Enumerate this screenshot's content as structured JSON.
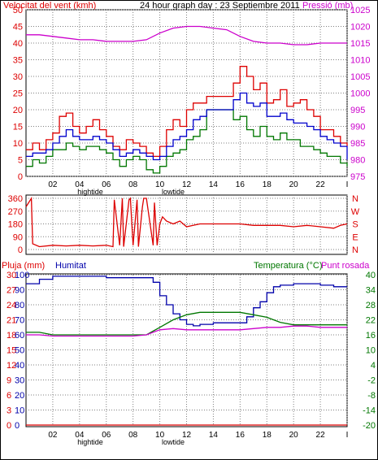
{
  "header": {
    "wind_label": "Velocitat del vent (kmh)",
    "graph_title": "24 hour graph day : 23 Septiembre 2011",
    "pressure_label": "Pressió (mb)"
  },
  "direction_letters": [
    "N",
    "W",
    "S",
    "E",
    "N"
  ],
  "lower_labels": {
    "rain": "Pluja (mm)",
    "humidity": "Humitat",
    "temperature": "Temperatura (°C)",
    "dew": "Punt rosada"
  },
  "tide_labels": [
    {
      "text": "hightide",
      "x": 4.8
    },
    {
      "text": "lowtide",
      "x": 11.0
    }
  ],
  "colors": {
    "frame": "#000000",
    "gust": "#dd0000",
    "wind_avg": "#0000cc",
    "wind_low": "#007700",
    "pressure": "#cc00cc",
    "temperature": "#007700",
    "humidity": "#0000aa",
    "rain": "#dd0000",
    "dew": "#cc00cc",
    "direction": "#dd0000",
    "grid": "#808080"
  },
  "chart_data": [
    {
      "type": "line",
      "title": "24 hour graph day : 23 Septiembre 2011",
      "xlabel": "",
      "x_ticks": [
        "02",
        "04",
        "06",
        "08",
        "10",
        "12",
        "14",
        "16",
        "18",
        "20",
        "22",
        "I"
      ],
      "x_range": [
        0,
        24
      ],
      "y_left": {
        "label": "Velocitat del vent (kmh)",
        "range": [
          0,
          50
        ],
        "ticks": [
          0,
          5,
          10,
          15,
          20,
          25,
          30,
          35,
          40,
          45,
          50
        ]
      },
      "y_right": {
        "label": "Pressió (mb)",
        "range": [
          975,
          1025
        ],
        "ticks": [
          975,
          980,
          985,
          990,
          995,
          1000,
          1005,
          1010,
          1015,
          1020,
          1025
        ]
      },
      "grid": true,
      "series": [
        {
          "name": "gust",
          "axis": "left",
          "x": [
            0,
            0.5,
            1,
            1.5,
            2,
            2.5,
            3,
            3.5,
            4,
            4.5,
            5,
            5.5,
            6,
            6.5,
            7,
            7.5,
            8,
            8.5,
            9,
            9.5,
            10,
            10.5,
            11,
            11.5,
            12,
            12.5,
            13,
            13.5,
            14,
            14.5,
            15,
            15.5,
            16,
            16.5,
            17,
            17.5,
            18,
            18.5,
            19,
            19.5,
            20,
            20.5,
            21,
            21.5,
            22,
            22.5,
            23,
            23.5,
            24
          ],
          "y": [
            8,
            10,
            8,
            11,
            13,
            18,
            19,
            15,
            13,
            15,
            17,
            14,
            12,
            9,
            8,
            11,
            10,
            9,
            7,
            6,
            9,
            14,
            17,
            15,
            20,
            22,
            22,
            24,
            24,
            24,
            24,
            28,
            33,
            30,
            26,
            28,
            22,
            23,
            26,
            21,
            22,
            23,
            20,
            18,
            14,
            14,
            12,
            10,
            9
          ]
        },
        {
          "name": "average",
          "axis": "left",
          "x": [
            0,
            0.5,
            1,
            1.5,
            2,
            2.5,
            3,
            3.5,
            4,
            4.5,
            5,
            5.5,
            6,
            6.5,
            7,
            7.5,
            8,
            8.5,
            9,
            9.5,
            10,
            10.5,
            11,
            11.5,
            12,
            12.5,
            13,
            13.5,
            14,
            14.5,
            15,
            15.5,
            16,
            16.5,
            17,
            17.5,
            18,
            18.5,
            19,
            19.5,
            20,
            20.5,
            21,
            21.5,
            22,
            22.5,
            23,
            23.5,
            24
          ],
          "y": [
            6,
            7,
            7,
            8,
            10,
            12,
            14,
            12,
            11,
            11,
            12,
            11,
            10,
            8,
            6,
            7,
            8,
            7,
            6,
            5,
            6,
            9,
            11,
            12,
            14,
            17,
            18,
            20,
            20,
            20,
            20,
            23,
            25,
            22,
            21,
            22,
            18,
            18,
            19,
            17,
            16,
            16,
            15,
            14,
            12,
            11,
            10,
            9,
            5
          ]
        },
        {
          "name": "low",
          "axis": "left",
          "x": [
            0,
            0.5,
            1,
            1.5,
            2,
            2.5,
            3,
            3.5,
            4,
            4.5,
            5,
            5.5,
            6,
            6.5,
            7,
            7.5,
            8,
            8.5,
            9,
            9.5,
            10,
            10.5,
            11,
            11.5,
            12,
            12.5,
            13,
            13.5,
            14,
            14.5,
            15,
            15.5,
            16,
            16.5,
            17,
            17.5,
            18,
            18.5,
            19,
            19.5,
            20,
            20.5,
            21,
            21.5,
            22,
            22.5,
            23,
            23.5,
            24
          ],
          "y": [
            3,
            5,
            4,
            6,
            8,
            8,
            10,
            9,
            8,
            9,
            9,
            8,
            7,
            5,
            3,
            5,
            6,
            5,
            2,
            1,
            3,
            6,
            7,
            8,
            11,
            12,
            14,
            20,
            20,
            20,
            20,
            17,
            18,
            14,
            12,
            15,
            12,
            11,
            13,
            11,
            11,
            9,
            9,
            8,
            7,
            6,
            6,
            4,
            3
          ]
        },
        {
          "name": "pressure",
          "axis": "right",
          "x": [
            0,
            1,
            2,
            3,
            4,
            5,
            6,
            7,
            8,
            9,
            10,
            11,
            12,
            13,
            14,
            15,
            16,
            17,
            18,
            19,
            20,
            21,
            22,
            23,
            24
          ],
          "y": [
            1017.5,
            1017.5,
            1017,
            1016.5,
            1016,
            1016,
            1015.5,
            1015.5,
            1015.5,
            1016,
            1018,
            1019.5,
            1020,
            1020,
            1019.5,
            1019,
            1017,
            1015.5,
            1015,
            1015,
            1014.5,
            1014.5,
            1015,
            1015,
            1015
          ]
        }
      ]
    },
    {
      "type": "line",
      "xlabel": "",
      "y_left": {
        "label": "",
        "range": [
          0,
          360
        ],
        "ticks": [
          0,
          90,
          180,
          270,
          360
        ]
      },
      "series": [
        {
          "name": "direction",
          "x": [
            0,
            0.4,
            0.5,
            1,
            2,
            3,
            4,
            5,
            6,
            6.5,
            6.6,
            7,
            7.2,
            7.3,
            7.7,
            7.8,
            8,
            8.3,
            8.4,
            8.7,
            8.8,
            9,
            9.5,
            9.6,
            9.8,
            10,
            10.2,
            10.5,
            11,
            11.5,
            12,
            12.5,
            13,
            14,
            15,
            16,
            17,
            18,
            19,
            20,
            21,
            22,
            23,
            23.5,
            24
          ],
          "y": [
            300,
            360,
            40,
            20,
            30,
            25,
            30,
            25,
            30,
            20,
            350,
            30,
            360,
            20,
            350,
            360,
            30,
            350,
            20,
            300,
            360,
            360,
            30,
            330,
            30,
            180,
            230,
            200,
            180,
            200,
            160,
            170,
            180,
            180,
            180,
            180,
            170,
            170,
            170,
            160,
            170,
            160,
            150,
            170,
            180
          ]
        }
      ]
    },
    {
      "type": "line",
      "xlabel": "",
      "y_left_rain": {
        "label": "Pluja (mm)",
        "range": [
          0,
          30
        ],
        "ticks": [
          0,
          3,
          6,
          9,
          12,
          15,
          18,
          21,
          24,
          27,
          30
        ]
      },
      "y_left_humidity": {
        "label": "Humitat",
        "range": [
          0,
          100
        ],
        "ticks": [
          0,
          10,
          20,
          30,
          40,
          50,
          60,
          70,
          80,
          90,
          100
        ]
      },
      "y_right": {
        "label": "Temperatura (°C)",
        "range": [
          -20,
          40
        ],
        "ticks": [
          -20,
          -14,
          -8,
          -2,
          4,
          10,
          16,
          22,
          28,
          34,
          40
        ]
      },
      "series": [
        {
          "name": "Humitat",
          "axis": "humidity",
          "x": [
            0,
            1,
            2,
            3,
            4,
            5,
            6,
            7,
            8,
            9,
            9.5,
            10,
            10.5,
            11,
            11.5,
            12,
            12.5,
            13,
            14,
            15,
            16,
            16.5,
            17,
            17.5,
            18,
            18.5,
            19,
            20,
            21,
            22,
            23,
            24
          ],
          "y": [
            94,
            97,
            99,
            99,
            99,
            99,
            98,
            98,
            98,
            98,
            95,
            86,
            80,
            74,
            70,
            67,
            66,
            67,
            68,
            68,
            68,
            72,
            78,
            82,
            88,
            92,
            93,
            94,
            94,
            93,
            92,
            92
          ]
        },
        {
          "name": "Temperatura",
          "axis": "temperature",
          "x": [
            0,
            1,
            2,
            3,
            4,
            5,
            6,
            7,
            8,
            9,
            10,
            11,
            12,
            13,
            14,
            15,
            16,
            17,
            18,
            19,
            20,
            21,
            22,
            23,
            24
          ],
          "y": [
            17,
            17,
            16,
            16,
            16,
            16,
            16,
            16,
            16,
            16,
            19,
            22,
            24,
            25,
            25,
            25,
            25,
            24,
            23,
            21,
            20,
            20,
            20,
            20,
            20
          ]
        },
        {
          "name": "Punt rosada",
          "axis": "temperature",
          "x": [
            0,
            1,
            2,
            3,
            4,
            5,
            6,
            7,
            8,
            9,
            10,
            11,
            12,
            13,
            14,
            15,
            16,
            17,
            18,
            19,
            20,
            21,
            22,
            23,
            24
          ],
          "y": [
            16,
            16,
            15.5,
            15.5,
            15.5,
            15.5,
            15.5,
            15.5,
            15.5,
            16,
            18,
            18.5,
            18,
            18,
            18,
            18,
            18,
            18.5,
            19,
            19,
            19.5,
            19.5,
            19,
            19,
            19
          ]
        },
        {
          "name": "Pluja",
          "axis": "rain",
          "x": [
            0,
            24
          ],
          "y": [
            0,
            0
          ]
        }
      ]
    }
  ]
}
